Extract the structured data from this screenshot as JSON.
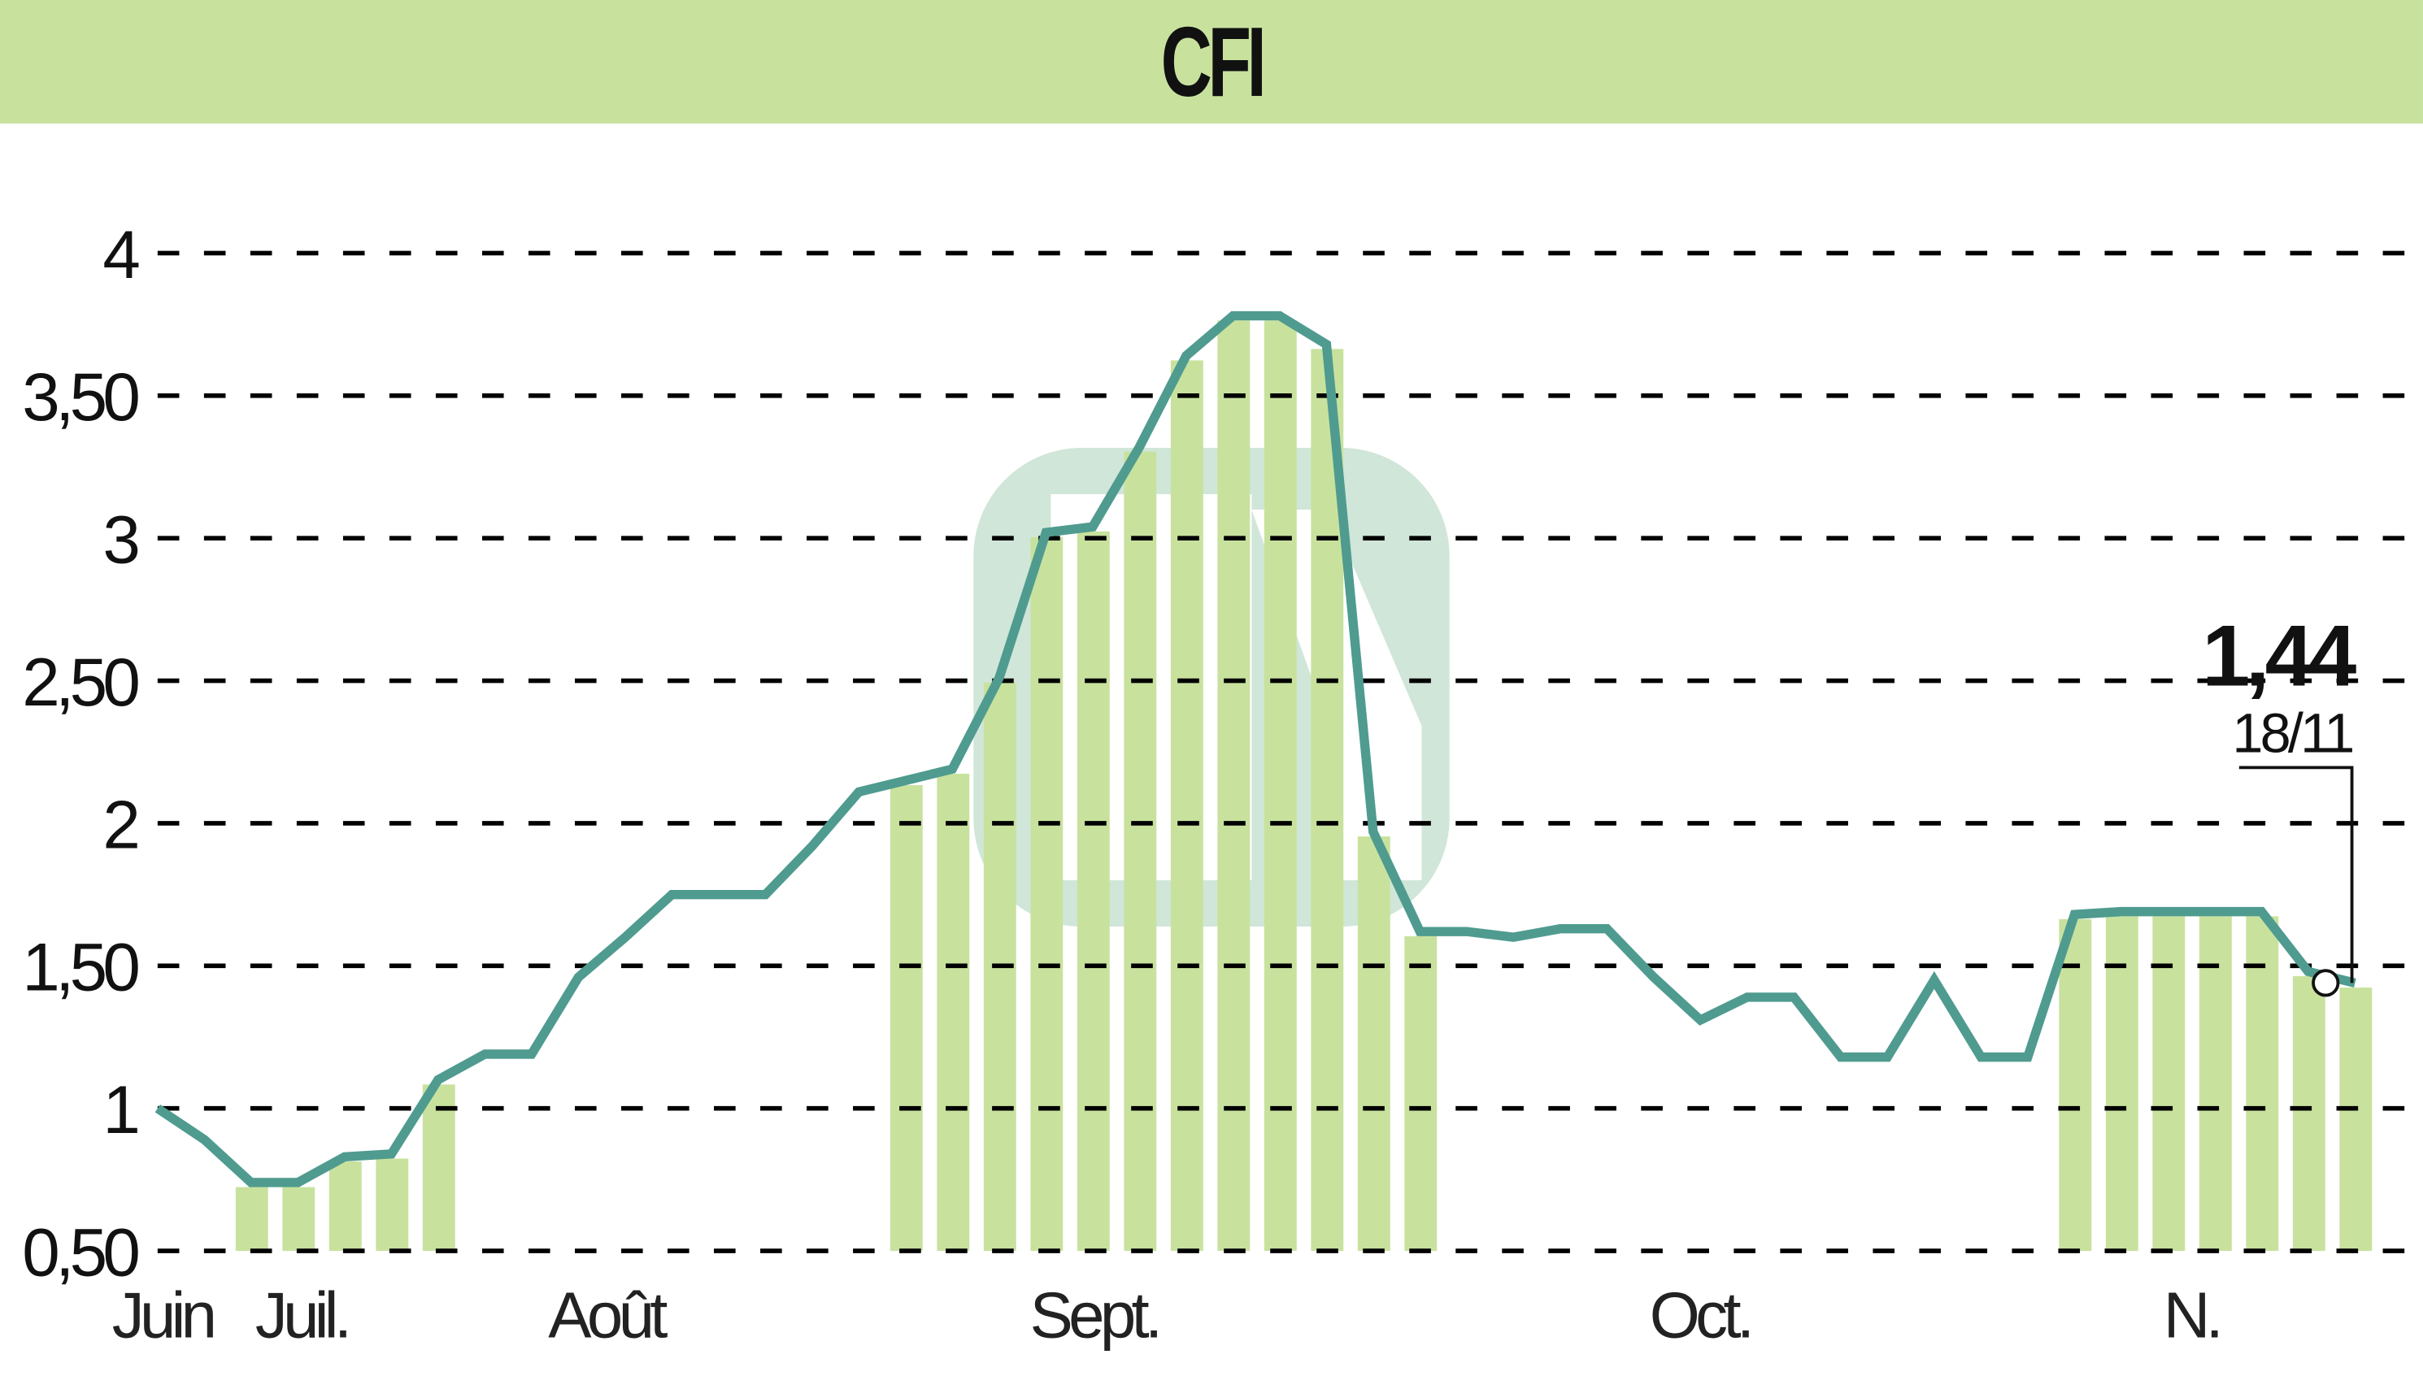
{
  "header": {
    "title": "CFI"
  },
  "annotation": {
    "last_value": "1,44",
    "last_date": "18/11"
  },
  "colors": {
    "header_bg": "#c8e29e",
    "bars": "#c8e29e",
    "line": "#4f9b8f",
    "watermark": "#b9d9c8",
    "grid": "#000000"
  },
  "chart_data": {
    "type": "line",
    "title": "CFI",
    "xlabel": "",
    "ylabel": "",
    "ylim": [
      0.5,
      4
    ],
    "grid": true,
    "y_ticks": [
      "0,50",
      "1",
      "1,50",
      "2",
      "2,50",
      "3",
      "3,50",
      "4"
    ],
    "y_tick_values": [
      0.5,
      1,
      1.5,
      2,
      2.5,
      3,
      3.5,
      4
    ],
    "x_ticks": [
      "Juin",
      "Juil.",
      "Août",
      "Sept.",
      "Oct.",
      "N."
    ],
    "series": [
      {
        "name": "CFI",
        "values": [
          1.0,
          0.89,
          0.74,
          0.74,
          0.83,
          0.84,
          1.1,
          1.19,
          1.19,
          1.46,
          1.6,
          1.75,
          1.75,
          1.75,
          1.92,
          2.11,
          2.15,
          2.19,
          2.51,
          3.02,
          3.04,
          3.32,
          3.64,
          3.78,
          3.78,
          3.68,
          1.97,
          1.62,
          1.62,
          1.6,
          1.63,
          1.63,
          1.46,
          1.31,
          1.39,
          1.39,
          1.18,
          1.18,
          1.45,
          1.18,
          1.18,
          1.68,
          1.69,
          1.69,
          1.69,
          1.69,
          1.48,
          1.44
        ]
      }
    ],
    "volume_bars_visible_in": [
      "Juil.",
      "Sept.",
      "N."
    ],
    "last_point": {
      "value": 1.44,
      "label": "1,44",
      "date": "18/11"
    }
  }
}
